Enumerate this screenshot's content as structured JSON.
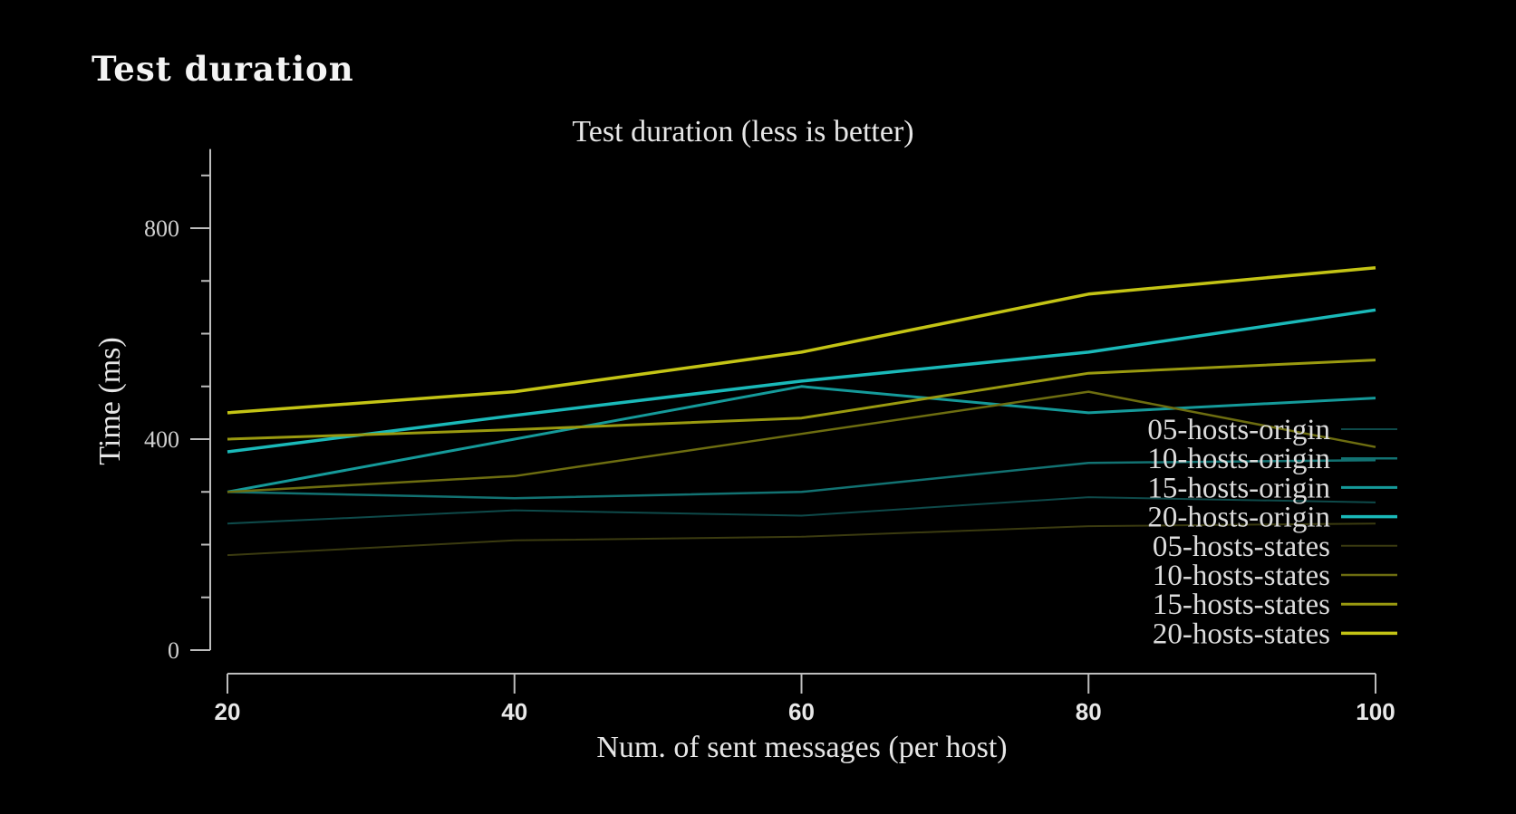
{
  "page": {
    "heading": "Test duration"
  },
  "chart_data": {
    "type": "line",
    "title": "Test duration (less is better)",
    "xlabel": "Num. of sent messages (per host)",
    "ylabel": "Time (ms)",
    "x": [
      20,
      40,
      60,
      80,
      100
    ],
    "xlim": [
      20,
      100
    ],
    "ylim": [
      0,
      950
    ],
    "yticks": [
      0,
      400,
      800
    ],
    "yminor_step": 100,
    "legend_position": "right",
    "grid": false,
    "series": [
      {
        "name": "05-hosts-origin",
        "color": "#0e4a4a",
        "width": 2,
        "values": [
          240,
          265,
          255,
          290,
          280
        ]
      },
      {
        "name": "10-hosts-origin",
        "color": "#127272",
        "width": 2.5,
        "values": [
          300,
          288,
          300,
          355,
          360
        ]
      },
      {
        "name": "15-hosts-origin",
        "color": "#159a9a",
        "width": 3,
        "values": [
          300,
          400,
          500,
          450,
          478
        ]
      },
      {
        "name": "20-hosts-origin",
        "color": "#1ab9b9",
        "width": 3.5,
        "values": [
          376,
          445,
          510,
          565,
          645
        ]
      },
      {
        "name": "05-hosts-states",
        "color": "#3b3b10",
        "width": 2,
        "values": [
          180,
          208,
          215,
          235,
          240
        ]
      },
      {
        "name": "10-hosts-states",
        "color": "#6d6d10",
        "width": 2.5,
        "values": [
          300,
          330,
          410,
          490,
          385
        ]
      },
      {
        "name": "15-hosts-states",
        "color": "#9a9a10",
        "width": 3,
        "values": [
          400,
          418,
          440,
          525,
          550
        ]
      },
      {
        "name": "20-hosts-states",
        "color": "#c4c415",
        "width": 3.5,
        "values": [
          450,
          490,
          565,
          675,
          725
        ]
      }
    ]
  }
}
